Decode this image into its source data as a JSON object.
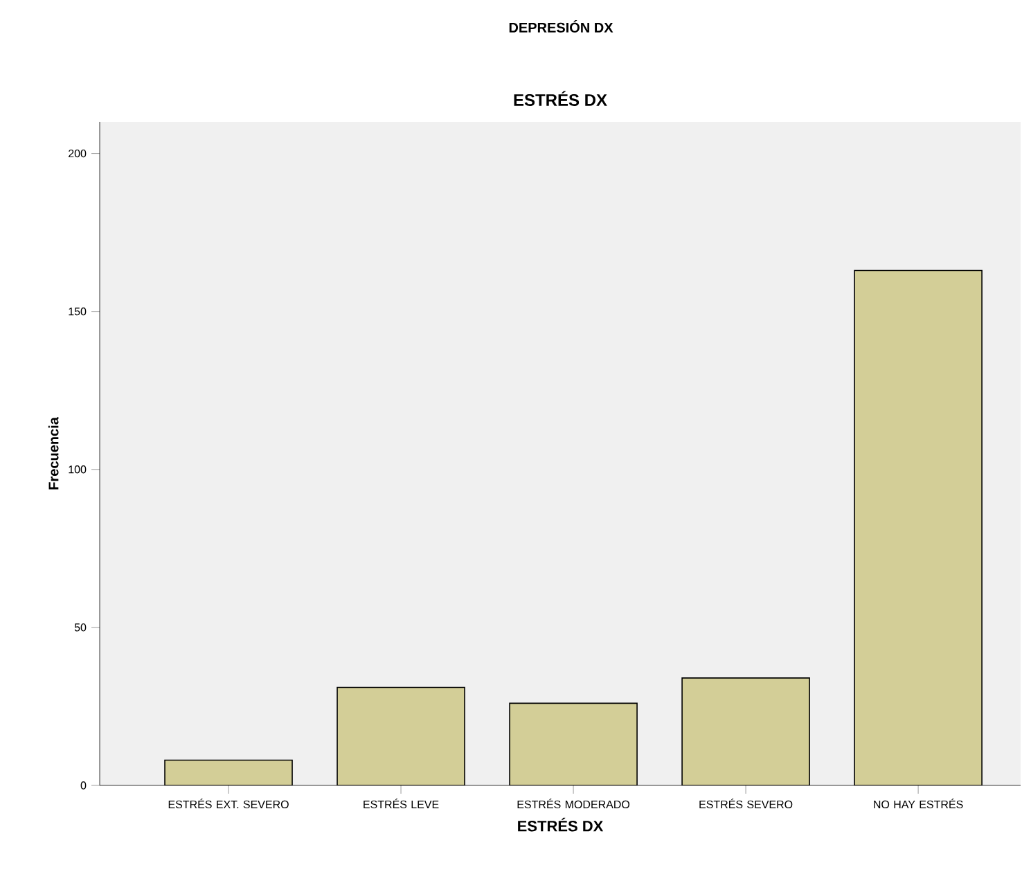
{
  "chart_data": {
    "type": "bar",
    "title": "DEPRESIÓN DX",
    "subtitle": "ESTRÉS DX",
    "xlabel": "ESTRÉS DX",
    "ylabel": "Frecuencia",
    "categories": [
      "ESTRÉS EXT. SEVERO",
      "ESTRÉS LEVE",
      "ESTRÉS MODERADO",
      "ESTRÉS SEVERO",
      "NO HAY ESTRÉS"
    ],
    "values": [
      8,
      31,
      26,
      34,
      163
    ],
    "color": "#d3ce97",
    "ylim": [
      0,
      210
    ],
    "yticks": [
      0,
      50,
      100,
      150,
      200
    ],
    "grid": false
  }
}
